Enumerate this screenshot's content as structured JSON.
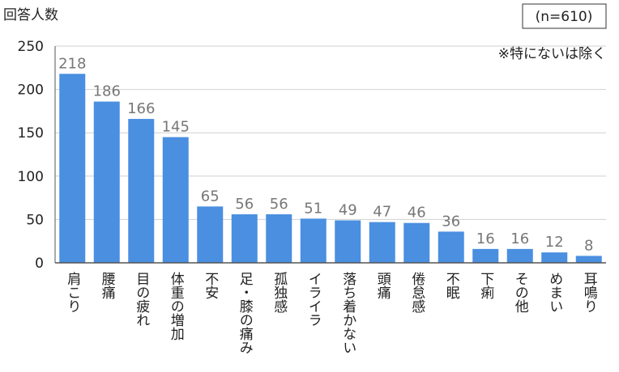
{
  "chart_data": {
    "type": "bar",
    "ylabel": "回答人数",
    "annotations": [
      "(n=610)",
      "※特にないは除く"
    ],
    "categories": [
      "肩こり",
      "腰痛",
      "目の疲れ",
      "体重の増加",
      "不安",
      "足・膝の痛み",
      "孤独感",
      "イライラ",
      "落ち着かない",
      "頭痛",
      "倦怠感",
      "不眠",
      "下痢",
      "その他",
      "めまい",
      "耳鳴り"
    ],
    "values": [
      218,
      186,
      166,
      145,
      65,
      56,
      56,
      51,
      49,
      47,
      46,
      36,
      16,
      16,
      12,
      8
    ],
    "color": "#4a8fe0",
    "ylim": [
      0,
      250
    ],
    "yticks": [
      0,
      50,
      100,
      150,
      200,
      250
    ],
    "grid": true
  }
}
